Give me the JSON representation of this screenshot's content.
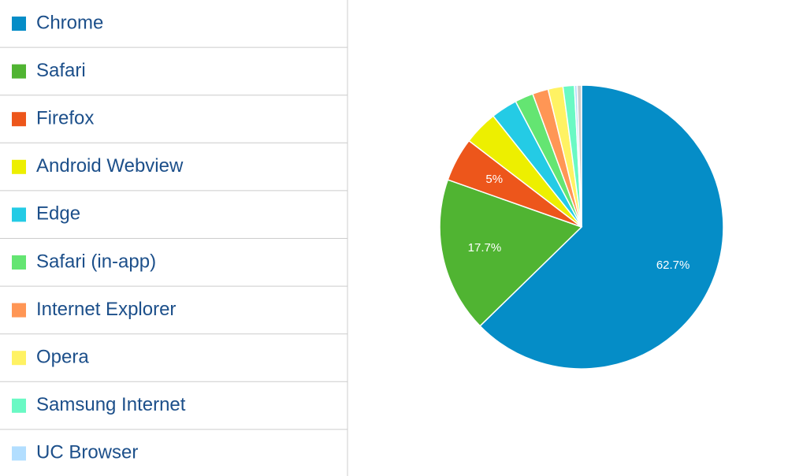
{
  "chart_data": {
    "type": "pie",
    "categories": [
      "Chrome",
      "Safari",
      "Firefox",
      "Android Webview",
      "Edge",
      "Safari (in-app)",
      "Internet Explorer",
      "Opera",
      "Samsung Internet",
      "UC Browser",
      null
    ],
    "values": [
      62.7,
      17.7,
      5,
      3.9,
      3.0,
      2.1,
      1.8,
      1.7,
      1.3,
      0.3,
      0.5
    ],
    "value_labels": [
      "62.7%",
      "17.7%",
      "5%",
      null,
      null,
      null,
      null,
      null,
      null,
      null,
      null
    ],
    "colors": [
      "#058dc7",
      "#50b432",
      "#ed561b",
      "#edef00",
      "#24cbe5",
      "#64e572",
      "#ff9655",
      "#fff263",
      "#6af9c4",
      "#b2deff",
      "#cccccc"
    ]
  }
}
